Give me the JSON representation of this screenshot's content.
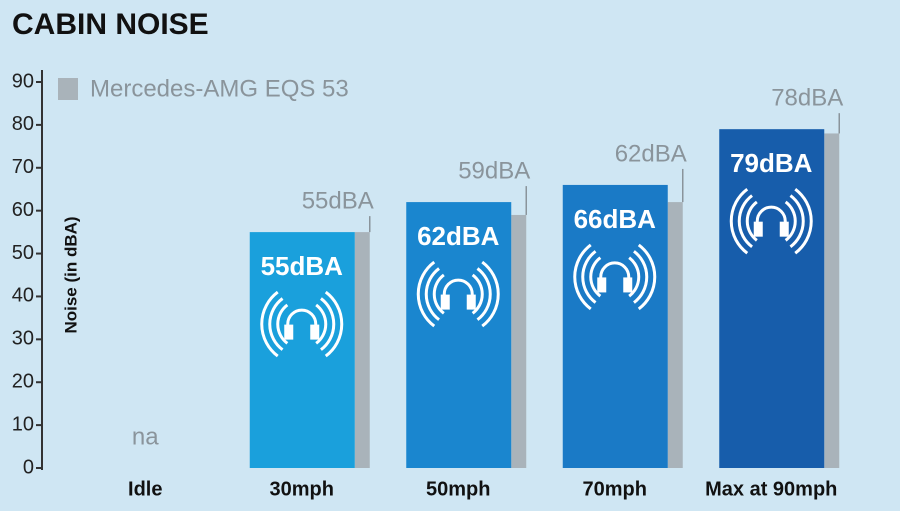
{
  "chart_data": {
    "type": "bar",
    "title": "CABIN NOISE",
    "y_label": "Noise (in dBA)",
    "categories": [
      "Idle",
      "30mph",
      "50mph",
      "70mph",
      "Max at 90mph"
    ],
    "series": [
      {
        "colors": [
          "#1a9ad8",
          "#1aa0dc",
          "#1a86cf",
          "#1a7ac6",
          "#175dab"
        ],
        "values": [
          null,
          55,
          62,
          66,
          79
        ],
        "value_labels": [
          "na",
          "55dBA",
          "62dBA",
          "66dBA",
          "79dBA"
        ]
      },
      {
        "name": "Mercedes-AMG EQS 53",
        "color": "#a9b3ba",
        "values": [
          null,
          55,
          59,
          62,
          78
        ],
        "value_labels": [
          null,
          "55dBA",
          "59dBA",
          "62dBA",
          "78dBA"
        ]
      }
    ],
    "ylim": [
      0,
      90
    ],
    "yticks": [
      0,
      10,
      20,
      30,
      40,
      50,
      60,
      70,
      80,
      90
    ]
  }
}
